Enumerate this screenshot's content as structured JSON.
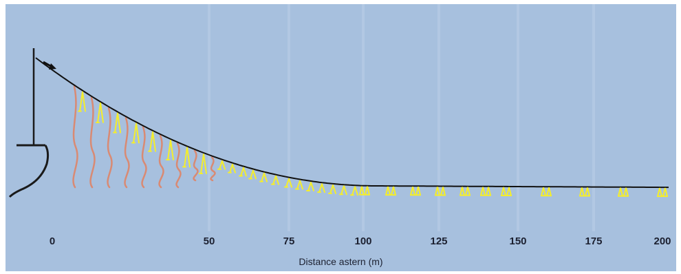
{
  "axis": {
    "title": "Distance astern (m)",
    "ticks": [
      "0",
      "50",
      "75",
      "100",
      "125",
      "150",
      "175",
      "200"
    ]
  },
  "colors": {
    "background": "#a7c0de",
    "mainline": "#111111",
    "branchlines": "#f5ee2a",
    "streamers": "#d98a73",
    "vessel": "#1a1a1a"
  },
  "icons": {
    "vessel": "vessel-stern-outline",
    "setting_device": "arrow-icon"
  }
}
